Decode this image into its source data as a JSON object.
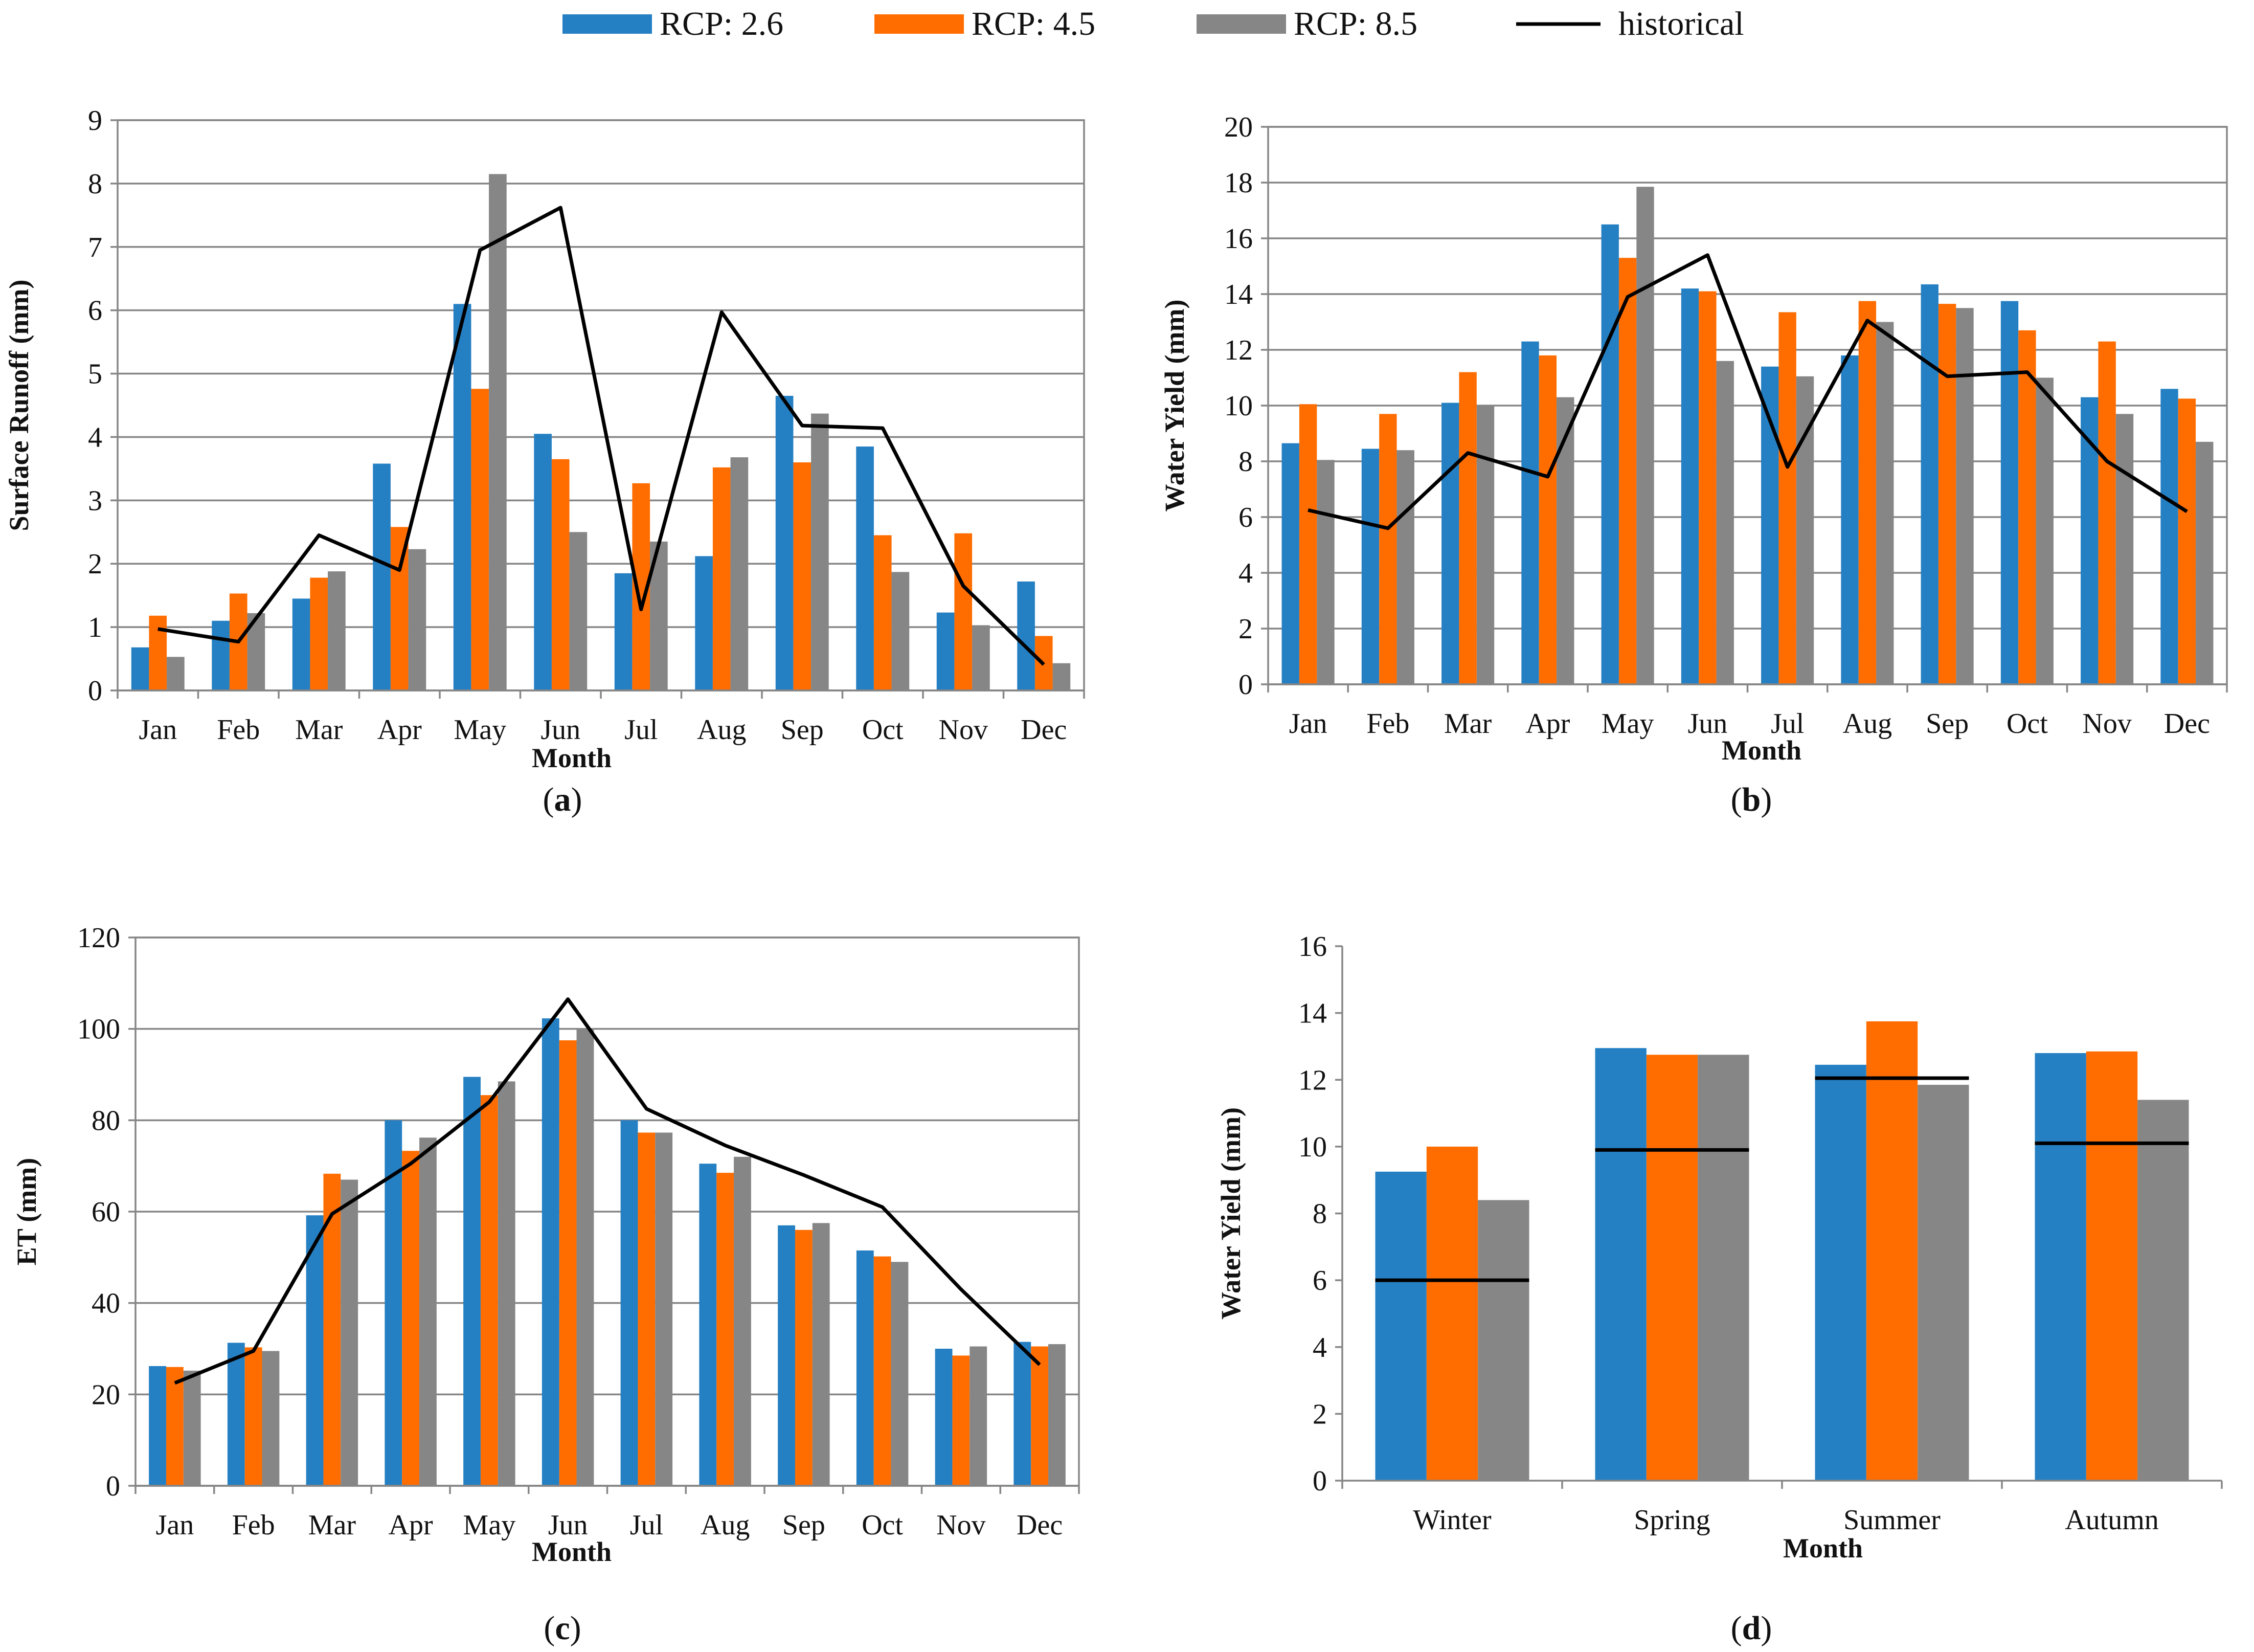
{
  "legend": [
    {
      "label": "RCP: 2.6",
      "type": "bar",
      "color": "#2580C3"
    },
    {
      "label": "RCP: 4.5",
      "type": "bar",
      "color": "#FF6D00"
    },
    {
      "label": "RCP: 8.5",
      "type": "bar",
      "color": "#868686"
    },
    {
      "label": "historical",
      "type": "line",
      "color": "#000000"
    }
  ],
  "chart_data": [
    {
      "id": "a",
      "caption_letter": "a",
      "type": "bar",
      "ylabel": "Surface Runoff (mm)",
      "xlabel": "Month",
      "ylim": [
        0,
        9
      ],
      "ytick_step": 1,
      "grid": true,
      "categories": [
        "Jan",
        "Feb",
        "Mar",
        "Apr",
        "May",
        "Jun",
        "Jul",
        "Aug",
        "Sep",
        "Oct",
        "Nov",
        "Dec"
      ],
      "series": [
        {
          "name": "RCP: 2.6",
          "values": [
            0.68,
            1.1,
            1.45,
            3.58,
            6.1,
            4.05,
            1.85,
            2.12,
            4.65,
            3.85,
            1.23,
            1.72
          ]
        },
        {
          "name": "RCP: 4.5",
          "values": [
            1.18,
            1.53,
            1.78,
            2.58,
            4.76,
            3.65,
            3.27,
            3.52,
            3.6,
            2.45,
            2.48,
            0.86
          ]
        },
        {
          "name": "RCP: 8.5",
          "values": [
            0.53,
            1.22,
            1.88,
            2.23,
            8.15,
            2.5,
            2.35,
            3.68,
            4.37,
            1.87,
            1.03,
            0.43
          ]
        }
      ],
      "historical": [
        0.97,
        0.77,
        2.45,
        1.9,
        6.95,
        7.62,
        1.28,
        5.97,
        4.18,
        4.14,
        1.65,
        0.41
      ]
    },
    {
      "id": "b",
      "caption_letter": "b",
      "type": "bar",
      "ylabel": "Water Yield (mm)",
      "xlabel": "Month",
      "ylim": [
        0,
        20
      ],
      "ytick_step": 2,
      "grid": true,
      "categories": [
        "Jan",
        "Feb",
        "Mar",
        "Apr",
        "May",
        "Jun",
        "Jul",
        "Aug",
        "Sep",
        "Oct",
        "Nov",
        "Dec"
      ],
      "series": [
        {
          "name": "RCP: 2.6",
          "values": [
            8.65,
            8.45,
            10.1,
            12.3,
            16.5,
            14.2,
            11.4,
            11.8,
            14.35,
            13.75,
            10.3,
            10.6
          ]
        },
        {
          "name": "RCP: 4.5",
          "values": [
            10.05,
            9.7,
            11.2,
            11.8,
            15.3,
            14.1,
            13.35,
            13.75,
            13.65,
            12.7,
            12.3,
            10.25
          ]
        },
        {
          "name": "RCP: 8.5",
          "values": [
            8.05,
            8.4,
            10.0,
            10.3,
            17.85,
            11.6,
            11.05,
            13.0,
            13.5,
            11.0,
            9.7,
            8.7
          ]
        }
      ],
      "historical": [
        6.25,
        5.6,
        8.3,
        7.45,
        13.9,
        15.4,
        7.8,
        13.05,
        11.05,
        11.2,
        8.0,
        6.2
      ]
    },
    {
      "id": "c",
      "caption_letter": "c",
      "type": "bar",
      "ylabel": "ET (mm)",
      "xlabel": "Month",
      "ylim": [
        0,
        120
      ],
      "ytick_step": 20,
      "grid": true,
      "categories": [
        "Jan",
        "Feb",
        "Mar",
        "Apr",
        "May",
        "Jun",
        "Jul",
        "Aug",
        "Sep",
        "Oct",
        "Nov",
        "Dec"
      ],
      "series": [
        {
          "name": "RCP: 2.6",
          "values": [
            26.2,
            31.3,
            59.2,
            80.0,
            89.5,
            102.3,
            80.0,
            70.5,
            57.0,
            51.5,
            30.0,
            31.5
          ]
        },
        {
          "name": "RCP: 4.5",
          "values": [
            26.0,
            30.3,
            68.3,
            73.3,
            85.5,
            97.5,
            77.3,
            68.5,
            56.0,
            50.2,
            28.5,
            30.5
          ]
        },
        {
          "name": "RCP: 8.5",
          "values": [
            25.2,
            29.5,
            67.0,
            76.2,
            88.5,
            100.0,
            77.3,
            72.0,
            57.5,
            49.0,
            30.5,
            31.0
          ]
        }
      ],
      "historical": [
        22.5,
        29.5,
        59.5,
        70.5,
        84.0,
        106.5,
        82.5,
        74.5,
        68.0,
        61.0,
        43.0,
        26.5
      ]
    },
    {
      "id": "d",
      "caption_letter": "d",
      "type": "bar",
      "ylabel": "Water Yield (mm)",
      "xlabel": "Month",
      "ylim": [
        0,
        16
      ],
      "ytick_step": 2,
      "grid": false,
      "categories": [
        "Winter",
        "Spring",
        "Summer",
        "Autumn"
      ],
      "series": [
        {
          "name": "RCP: 2.6",
          "values": [
            9.25,
            12.95,
            12.45,
            12.8
          ]
        },
        {
          "name": "RCP: 4.5",
          "values": [
            10.0,
            12.75,
            13.75,
            12.85
          ]
        },
        {
          "name": "RCP: 8.5",
          "values": [
            8.4,
            12.75,
            11.85,
            11.4
          ]
        }
      ],
      "historical": [
        6.0,
        9.9,
        12.05,
        10.1
      ]
    }
  ]
}
